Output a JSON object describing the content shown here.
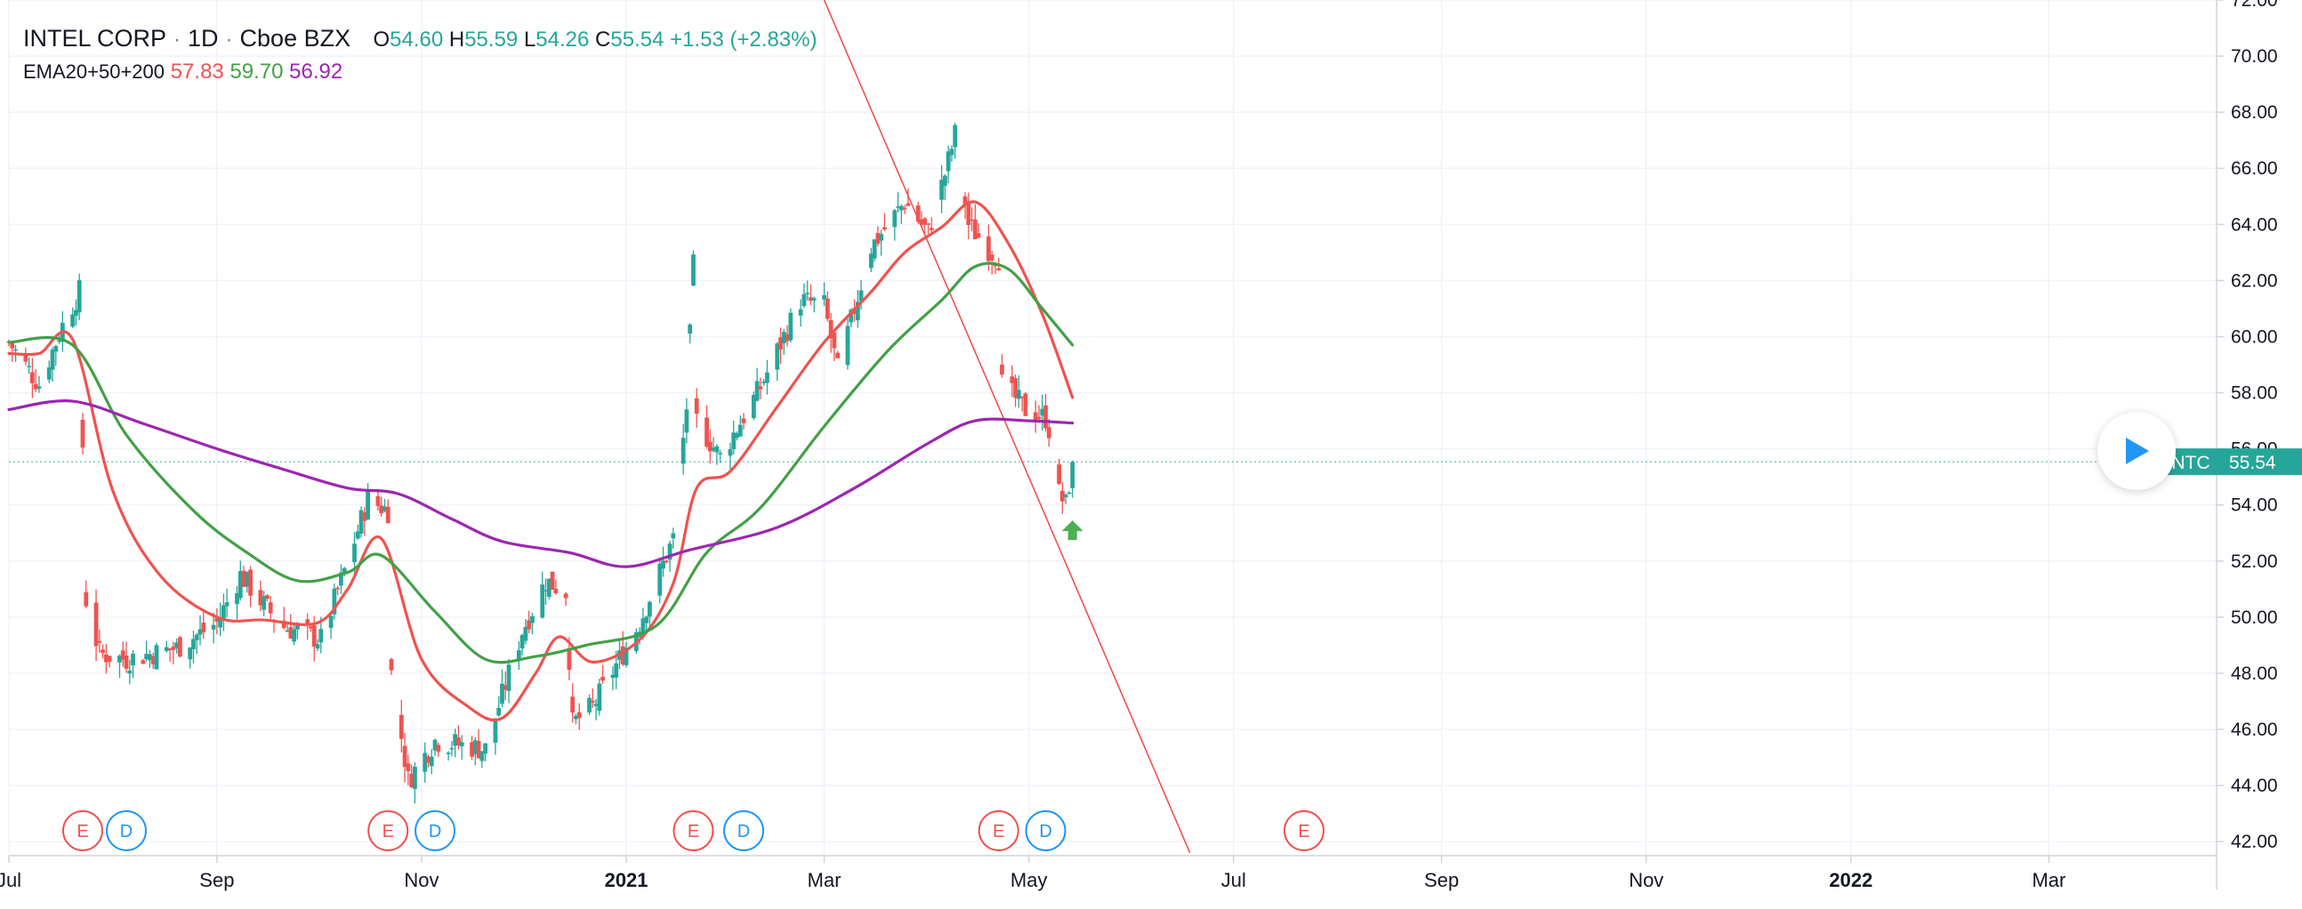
{
  "header": {
    "symbol": "INTEL CORP",
    "interval": "1D",
    "exchange": "Cboe BZX",
    "open_label": "O",
    "open_value": "54.60",
    "high_label": "H",
    "high_value": "55.59",
    "low_label": "L",
    "low_value": "54.26",
    "close_label": "C",
    "close_value": "55.54",
    "change": "+1.53 (+2.83%)"
  },
  "indicator": {
    "name": "EMA20+50+200",
    "ema20": "57.83",
    "ema50": "59.70",
    "ema200": "56.92"
  },
  "price_tag": {
    "ticker": "INTC",
    "price": "55.54"
  },
  "colors": {
    "up": "#26a69a",
    "down": "#ef5350",
    "ema20": "#ef5350",
    "ema50": "#43a047",
    "ema200": "#9c27b0",
    "trendline": "#ef5350",
    "arrow": "#4caf50",
    "earnings": "#ef5350",
    "dividend": "#2196f3"
  },
  "chart_data": {
    "type": "candlestick",
    "y_ticks": [
      "72.00",
      "70.00",
      "68.00",
      "66.00",
      "64.00",
      "62.00",
      "60.00",
      "58.00",
      "56.00",
      "54.00",
      "52.00",
      "50.00",
      "48.00",
      "46.00",
      "44.00",
      "42.00"
    ],
    "x_ticks": [
      {
        "label": "Jul",
        "date": "2020-07-01",
        "bold": false
      },
      {
        "label": "Sep",
        "date": "2020-09-01",
        "bold": false
      },
      {
        "label": "Nov",
        "date": "2020-11-01",
        "bold": false
      },
      {
        "label": "2021",
        "date": "2021-01-01",
        "bold": true
      },
      {
        "label": "Mar",
        "date": "2021-03-01",
        "bold": false
      },
      {
        "label": "May",
        "date": "2021-05-01",
        "bold": false
      },
      {
        "label": "Jul",
        "date": "2021-07-01",
        "bold": false
      },
      {
        "label": "Sep",
        "date": "2021-09-01",
        "bold": false
      },
      {
        "label": "Nov",
        "date": "2021-11-01",
        "bold": false
      },
      {
        "label": "2022",
        "date": "2022-01-01",
        "bold": true
      },
      {
        "label": "Mar",
        "date": "2022-03-01",
        "bold": false
      }
    ],
    "ylim": [
      41.5,
      72.0
    ],
    "xlim": [
      "2020-07-01",
      "2022-04-20"
    ],
    "price_anchors": [
      [
        "2020-07-01",
        59.8
      ],
      [
        "2020-07-10",
        58.3
      ],
      [
        "2020-07-17",
        60.4
      ],
      [
        "2020-07-22",
        61.6
      ],
      [
        "2020-07-24",
        50.6
      ],
      [
        "2020-07-28",
        48.7
      ],
      [
        "2020-08-05",
        48.5
      ],
      [
        "2020-08-20",
        48.9
      ],
      [
        "2020-09-01",
        49.8
      ],
      [
        "2020-09-08",
        51.5
      ],
      [
        "2020-09-20",
        49.7
      ],
      [
        "2020-10-02",
        49.2
      ],
      [
        "2020-10-10",
        52.0
      ],
      [
        "2020-10-16",
        54.2
      ],
      [
        "2020-10-22",
        53.8
      ],
      [
        "2020-10-23",
        48.0
      ],
      [
        "2020-10-28",
        44.2
      ],
      [
        "2020-11-05",
        45.6
      ],
      [
        "2020-11-20",
        45.3
      ],
      [
        "2020-12-01",
        49.5
      ],
      [
        "2020-12-08",
        51.3
      ],
      [
        "2020-12-14",
        50.9
      ],
      [
        "2020-12-16",
        46.2
      ],
      [
        "2020-12-22",
        46.8
      ],
      [
        "2021-01-05",
        49.8
      ],
      [
        "2021-01-15",
        52.8
      ],
      [
        "2021-01-19",
        57.5
      ],
      [
        "2021-01-21",
        62.5
      ],
      [
        "2021-01-22",
        57.0
      ],
      [
        "2021-01-29",
        55.7
      ],
      [
        "2021-02-10",
        58.2
      ],
      [
        "2021-02-22",
        61.3
      ],
      [
        "2021-03-01",
        61.1
      ],
      [
        "2021-03-05",
        58.8
      ],
      [
        "2021-03-15",
        63.2
      ],
      [
        "2021-03-25",
        64.8
      ],
      [
        "2021-04-01",
        63.7
      ],
      [
        "2021-04-06",
        65.8
      ],
      [
        "2021-04-09",
        67.2
      ],
      [
        "2021-04-13",
        64.0
      ],
      [
        "2021-04-20",
        63.0
      ],
      [
        "2021-04-22",
        62.8
      ],
      [
        "2021-04-23",
        58.3
      ],
      [
        "2021-04-30",
        57.4
      ],
      [
        "2021-05-06",
        57.1
      ],
      [
        "2021-05-08",
        56.3
      ],
      [
        "2021-05-10",
        54.4
      ],
      [
        "2021-05-12",
        54.0
      ],
      [
        "2021-05-14",
        55.5
      ]
    ],
    "last_candle": {
      "date": "2021-05-14",
      "open": 54.6,
      "high": 55.59,
      "low": 54.26,
      "close": 55.54
    },
    "series": [
      {
        "name": "EMA20",
        "color": "#ef5350",
        "points": [
          [
            "2020-07-01",
            59.4
          ],
          [
            "2020-07-10",
            59.4
          ],
          [
            "2020-07-20",
            59.9
          ],
          [
            "2020-08-01",
            54.5
          ],
          [
            "2020-08-15",
            51.5
          ],
          [
            "2020-09-01",
            50.0
          ],
          [
            "2020-09-15",
            49.9
          ],
          [
            "2020-10-01",
            49.8
          ],
          [
            "2020-10-10",
            51.0
          ],
          [
            "2020-10-20",
            52.8
          ],
          [
            "2020-11-01",
            48.5
          ],
          [
            "2020-11-15",
            46.8
          ],
          [
            "2020-11-25",
            46.4
          ],
          [
            "2020-12-05",
            48.0
          ],
          [
            "2020-12-12",
            49.3
          ],
          [
            "2020-12-22",
            48.4
          ],
          [
            "2021-01-05",
            49.2
          ],
          [
            "2021-01-15",
            51.2
          ],
          [
            "2021-01-22",
            54.6
          ],
          [
            "2021-02-01",
            55.2
          ],
          [
            "2021-02-15",
            57.5
          ],
          [
            "2021-03-01",
            59.8
          ],
          [
            "2021-03-15",
            61.6
          ],
          [
            "2021-03-25",
            63.0
          ],
          [
            "2021-04-05",
            63.9
          ],
          [
            "2021-04-15",
            64.8
          ],
          [
            "2021-04-25",
            63.3
          ],
          [
            "2021-05-05",
            60.8
          ],
          [
            "2021-05-14",
            57.83
          ]
        ]
      },
      {
        "name": "EMA50",
        "color": "#43a047",
        "points": [
          [
            "2020-07-01",
            59.8
          ],
          [
            "2020-07-20",
            59.7
          ],
          [
            "2020-08-05",
            56.5
          ],
          [
            "2020-08-25",
            53.8
          ],
          [
            "2020-09-10",
            52.3
          ],
          [
            "2020-09-25",
            51.3
          ],
          [
            "2020-10-10",
            51.6
          ],
          [
            "2020-10-20",
            52.2
          ],
          [
            "2020-11-05",
            50.2
          ],
          [
            "2020-11-20",
            48.5
          ],
          [
            "2020-12-05",
            48.6
          ],
          [
            "2020-12-20",
            49.0
          ],
          [
            "2021-01-10",
            49.7
          ],
          [
            "2021-01-25",
            52.3
          ],
          [
            "2021-02-10",
            53.9
          ],
          [
            "2021-03-01",
            56.8
          ],
          [
            "2021-03-20",
            59.5
          ],
          [
            "2021-04-05",
            61.3
          ],
          [
            "2021-04-15",
            62.5
          ],
          [
            "2021-04-25",
            62.4
          ],
          [
            "2021-05-05",
            61.0
          ],
          [
            "2021-05-14",
            59.7
          ]
        ]
      },
      {
        "name": "EMA200",
        "color": "#9c27b0",
        "points": [
          [
            "2020-07-01",
            57.4
          ],
          [
            "2020-07-20",
            57.7
          ],
          [
            "2020-08-10",
            56.9
          ],
          [
            "2020-09-01",
            56.0
          ],
          [
            "2020-09-20",
            55.3
          ],
          [
            "2020-10-10",
            54.6
          ],
          [
            "2020-10-25",
            54.4
          ],
          [
            "2020-11-10",
            53.5
          ],
          [
            "2020-11-25",
            52.7
          ],
          [
            "2020-12-15",
            52.3
          ],
          [
            "2021-01-01",
            51.8
          ],
          [
            "2021-01-20",
            52.4
          ],
          [
            "2021-02-15",
            53.2
          ],
          [
            "2021-03-10",
            54.6
          ],
          [
            "2021-04-01",
            56.2
          ],
          [
            "2021-04-15",
            57.0
          ],
          [
            "2021-05-01",
            57.0
          ],
          [
            "2021-05-14",
            56.92
          ]
        ]
      }
    ],
    "trendline": [
      [
        "2021-03-01",
        72.0
      ],
      [
        "2021-06-18",
        41.6
      ]
    ],
    "arrow_marker": {
      "date": "2021-05-14",
      "value": 53.1
    },
    "events": [
      {
        "type": "E",
        "date": "2020-07-23"
      },
      {
        "type": "D",
        "date": "2020-08-05"
      },
      {
        "type": "E",
        "date": "2020-10-22"
      },
      {
        "type": "D",
        "date": "2020-11-05"
      },
      {
        "type": "E",
        "date": "2021-01-21"
      },
      {
        "type": "D",
        "date": "2021-02-05"
      },
      {
        "type": "E",
        "date": "2021-04-22"
      },
      {
        "type": "D",
        "date": "2021-05-06"
      },
      {
        "type": "E",
        "date": "2021-07-22"
      }
    ]
  }
}
